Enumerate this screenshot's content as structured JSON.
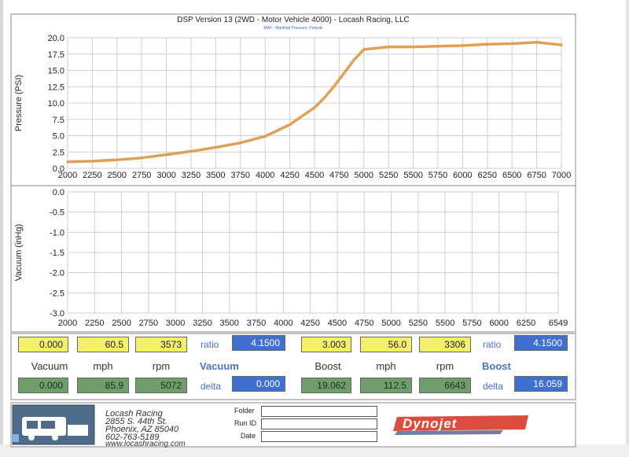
{
  "chart_data": [
    {
      "type": "line",
      "title": "DSP Version 13 (2WD - Motor Vehicle 4000) - Locash Racing, LLC",
      "subtitle": "MAF - Manifold Pressure: Prelude",
      "ylabel": "Pressure (PSI)",
      "xlabel": "",
      "xlim": [
        2000,
        7000
      ],
      "ylim": [
        0,
        20
      ],
      "grid": true,
      "x_ticks": [
        "2000",
        "2250",
        "2500",
        "2750",
        "3000",
        "3250",
        "3500",
        "3750",
        "4000",
        "4250",
        "4500",
        "4750",
        "5000",
        "5250",
        "5500",
        "5750",
        "6000",
        "6250",
        "6500",
        "6750",
        "7000"
      ],
      "y_ticks": [
        "0.0",
        "2.5",
        "5.0",
        "7.5",
        "10.0",
        "12.5",
        "15.0",
        "17.5",
        "20.0"
      ],
      "series_color": "#e0a055",
      "x": [
        2000,
        2250,
        2500,
        2750,
        3000,
        3250,
        3500,
        3750,
        4000,
        4250,
        4500,
        4600,
        4700,
        4800,
        4900,
        5000,
        5250,
        5500,
        5750,
        6000,
        6250,
        6500,
        6750,
        7000
      ],
      "y": [
        1.0,
        1.1,
        1.3,
        1.6,
        2.1,
        2.6,
        3.2,
        3.9,
        4.9,
        6.7,
        9.3,
        10.8,
        12.6,
        14.6,
        16.6,
        18.2,
        18.6,
        18.6,
        18.7,
        18.8,
        19.0,
        19.1,
        19.3,
        18.9
      ]
    },
    {
      "type": "line",
      "ylabel": "Vacuum (inHg)",
      "xlabel": "",
      "xlim": [
        2000,
        6549
      ],
      "ylim": [
        -3,
        0
      ],
      "grid": true,
      "x_ticks": [
        "2000",
        "2250",
        "2500",
        "2750",
        "3000",
        "3250",
        "3500",
        "3750",
        "4000",
        "4250",
        "4500",
        "4750",
        "5000",
        "5250",
        "5500",
        "5750",
        "6000",
        "6250",
        "6549"
      ],
      "y_ticks": [
        "0.0",
        "-0.5",
        "-1.0",
        "-1.5",
        "-2.0",
        "-2.5",
        "-3.0"
      ],
      "x": [],
      "y": []
    }
  ],
  "readouts": {
    "left": {
      "row1": {
        "vacuum": "0.000",
        "mph": "60.5",
        "rpm": "3573",
        "ratio_label": "ratio",
        "ratio": "4.1500"
      },
      "labels": {
        "c1": "Vacuum",
        "c2": "mph",
        "c3": "rpm",
        "header": "Vacuum"
      },
      "row2": {
        "vacuum": "0.000",
        "mph": "85.9",
        "rpm": "5072",
        "delta_label": "delta",
        "delta": "0.000"
      }
    },
    "right": {
      "row1": {
        "boost": "3.003",
        "mph": "56.0",
        "rpm": "3306",
        "ratio_label": "ratio",
        "ratio": "4.1500"
      },
      "labels": {
        "c1": "Boost",
        "c2": "mph",
        "c3": "rpm",
        "header": "Boost"
      },
      "row2": {
        "boost": "19.062",
        "mph": "112.5",
        "rpm": "6643",
        "delta_label": "delta",
        "delta": "16.059"
      }
    }
  },
  "footer": {
    "company": "Locash Racing",
    "address1": "2855 S. 44th St.",
    "address2": "Phoenix, AZ 85040",
    "phone": "602-763-5189",
    "web": "www.locashracing.com",
    "folder_label": "Folder",
    "runid_label": "Run ID",
    "date_label": "Date",
    "brand": "Dynojet",
    "brand_color": "#d83a2a"
  }
}
